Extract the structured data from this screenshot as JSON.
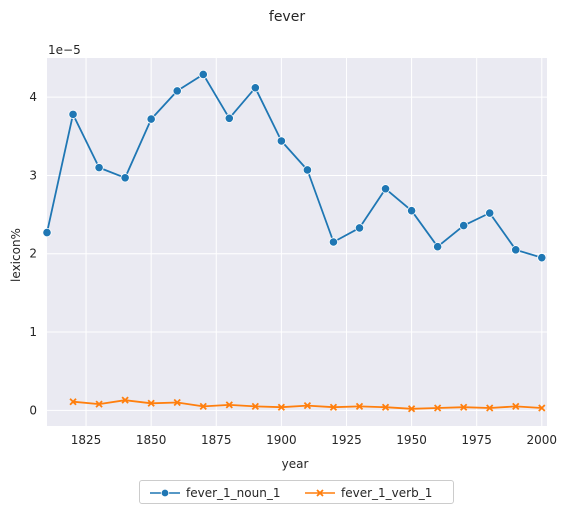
{
  "chart_data": {
    "type": "line",
    "title": "fever",
    "xlabel": "year",
    "ylabel": "lexicon%",
    "y_scale_label": "1e−5",
    "xlim": [
      1810,
      2002
    ],
    "ylim": [
      -0.2,
      4.5
    ],
    "x_ticks": [
      1825,
      1850,
      1875,
      1900,
      1925,
      1950,
      1975,
      2000
    ],
    "y_ticks": [
      0,
      1,
      2,
      3,
      4
    ],
    "grid": true,
    "legend_position": "bottom-center, below axes",
    "background": "#eaeaf2",
    "series": [
      {
        "name": "fever_1_noun_1",
        "color": "#1f77b4",
        "marker": "circle",
        "x": [
          1810,
          1820,
          1830,
          1840,
          1850,
          1860,
          1870,
          1880,
          1890,
          1900,
          1910,
          1920,
          1930,
          1940,
          1950,
          1960,
          1970,
          1980,
          1990,
          2000
        ],
        "y": [
          2.27,
          3.78,
          3.1,
          2.97,
          3.72,
          4.08,
          4.29,
          3.73,
          4.12,
          3.44,
          3.07,
          2.15,
          2.33,
          2.83,
          2.55,
          2.09,
          2.36,
          2.52,
          2.05,
          1.95
        ]
      },
      {
        "name": "fever_1_verb_1",
        "color": "#ff7f0e",
        "marker": "x",
        "x": [
          1820,
          1830,
          1840,
          1850,
          1860,
          1870,
          1880,
          1890,
          1900,
          1910,
          1920,
          1930,
          1940,
          1950,
          1960,
          1970,
          1980,
          1990,
          2000
        ],
        "y": [
          0.11,
          0.08,
          0.13,
          0.09,
          0.1,
          0.05,
          0.07,
          0.05,
          0.04,
          0.06,
          0.04,
          0.05,
          0.04,
          0.02,
          0.03,
          0.04,
          0.03,
          0.05,
          0.03
        ]
      }
    ]
  }
}
